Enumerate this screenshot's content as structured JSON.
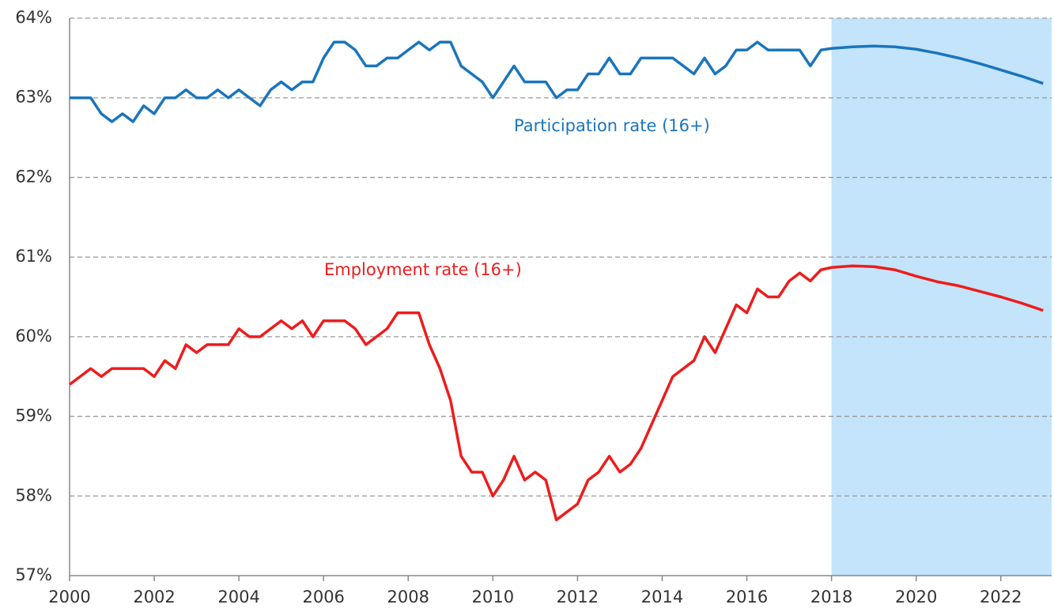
{
  "chart_data": {
    "type": "line",
    "x": [
      2000,
      2000.25,
      2000.5,
      2000.75,
      2001,
      2001.25,
      2001.5,
      2001.75,
      2002,
      2002.25,
      2002.5,
      2002.75,
      2003,
      2003.25,
      2003.5,
      2003.75,
      2004,
      2004.25,
      2004.5,
      2004.75,
      2005,
      2005.25,
      2005.5,
      2005.75,
      2006,
      2006.25,
      2006.5,
      2006.75,
      2007,
      2007.25,
      2007.5,
      2007.75,
      2008,
      2008.25,
      2008.5,
      2008.75,
      2009,
      2009.25,
      2009.5,
      2009.75,
      2010,
      2010.25,
      2010.5,
      2010.75,
      2011,
      2011.25,
      2011.5,
      2011.75,
      2012,
      2012.25,
      2012.5,
      2012.75,
      2013,
      2013.25,
      2013.5,
      2013.75,
      2014,
      2014.25,
      2014.5,
      2014.75,
      2015,
      2015.25,
      2015.5,
      2015.75,
      2016,
      2016.25,
      2016.5,
      2016.75,
      2017,
      2017.25,
      2017.5,
      2017.75,
      2018,
      2018.5,
      2019,
      2019.5,
      2020,
      2020.5,
      2021,
      2021.5,
      2022,
      2022.5,
      2023
    ],
    "series": [
      {
        "name": "Participation rate (16+)",
        "color": "#1a75bc",
        "values": [
          63.0,
          63.0,
          63.0,
          62.8,
          62.7,
          62.8,
          62.7,
          62.9,
          62.8,
          63.0,
          63.0,
          63.1,
          63.0,
          63.0,
          63.1,
          63.0,
          63.1,
          63.0,
          62.9,
          63.1,
          63.2,
          63.1,
          63.2,
          63.2,
          63.5,
          63.7,
          63.7,
          63.6,
          63.4,
          63.4,
          63.5,
          63.5,
          63.6,
          63.7,
          63.6,
          63.7,
          63.7,
          63.4,
          63.3,
          63.2,
          63.0,
          63.2,
          63.4,
          63.2,
          63.2,
          63.2,
          63.0,
          63.1,
          63.1,
          63.3,
          63.3,
          63.5,
          63.3,
          63.3,
          63.5,
          63.5,
          63.5,
          63.5,
          63.4,
          63.3,
          63.5,
          63.3,
          63.4,
          63.6,
          63.6,
          63.7,
          63.6,
          63.6,
          63.6,
          63.6,
          63.4,
          63.6,
          63.62,
          63.64,
          63.65,
          63.64,
          63.61,
          63.56,
          63.5,
          63.43,
          63.35,
          63.27,
          63.18
        ]
      },
      {
        "name": "Employment rate (16+)",
        "color": "#ee1c1c",
        "values": [
          59.4,
          59.5,
          59.6,
          59.5,
          59.6,
          59.6,
          59.6,
          59.6,
          59.5,
          59.7,
          59.6,
          59.9,
          59.8,
          59.9,
          59.9,
          59.9,
          60.1,
          60.0,
          60.0,
          60.1,
          60.2,
          60.1,
          60.2,
          60.0,
          60.2,
          60.2,
          60.2,
          60.1,
          59.9,
          60.0,
          60.1,
          60.3,
          60.3,
          60.3,
          59.9,
          59.6,
          59.2,
          58.5,
          58.3,
          58.3,
          58.0,
          58.2,
          58.5,
          58.2,
          58.3,
          58.2,
          57.7,
          57.8,
          57.9,
          58.2,
          58.3,
          58.5,
          58.3,
          58.4,
          58.6,
          58.9,
          59.2,
          59.5,
          59.6,
          59.7,
          60.0,
          59.8,
          60.1,
          60.4,
          60.3,
          60.6,
          60.5,
          60.5,
          60.7,
          60.8,
          60.7,
          60.84,
          60.87,
          60.89,
          60.88,
          60.84,
          60.76,
          60.69,
          60.64,
          60.57,
          60.5,
          60.42,
          60.33
        ]
      }
    ],
    "forecast_region": {
      "xlim": [
        2018,
        2023.2
      ],
      "color": "#c4e4fb"
    },
    "xlim": [
      2000,
      2023.2
    ],
    "xticks": [
      2000,
      2002,
      2004,
      2006,
      2008,
      2010,
      2012,
      2014,
      2016,
      2018,
      2020,
      2022
    ],
    "ylim": [
      57,
      64
    ],
    "yticks": [
      {
        "value": 57,
        "label": "57%"
      },
      {
        "value": 58,
        "label": "58%"
      },
      {
        "value": 59,
        "label": "59%"
      },
      {
        "value": 60,
        "label": "60%"
      },
      {
        "value": 61,
        "label": "61%"
      },
      {
        "value": 62,
        "label": "62%"
      },
      {
        "value": 63,
        "label": "63%"
      },
      {
        "value": 64,
        "label": "64%"
      }
    ],
    "grid": true
  }
}
